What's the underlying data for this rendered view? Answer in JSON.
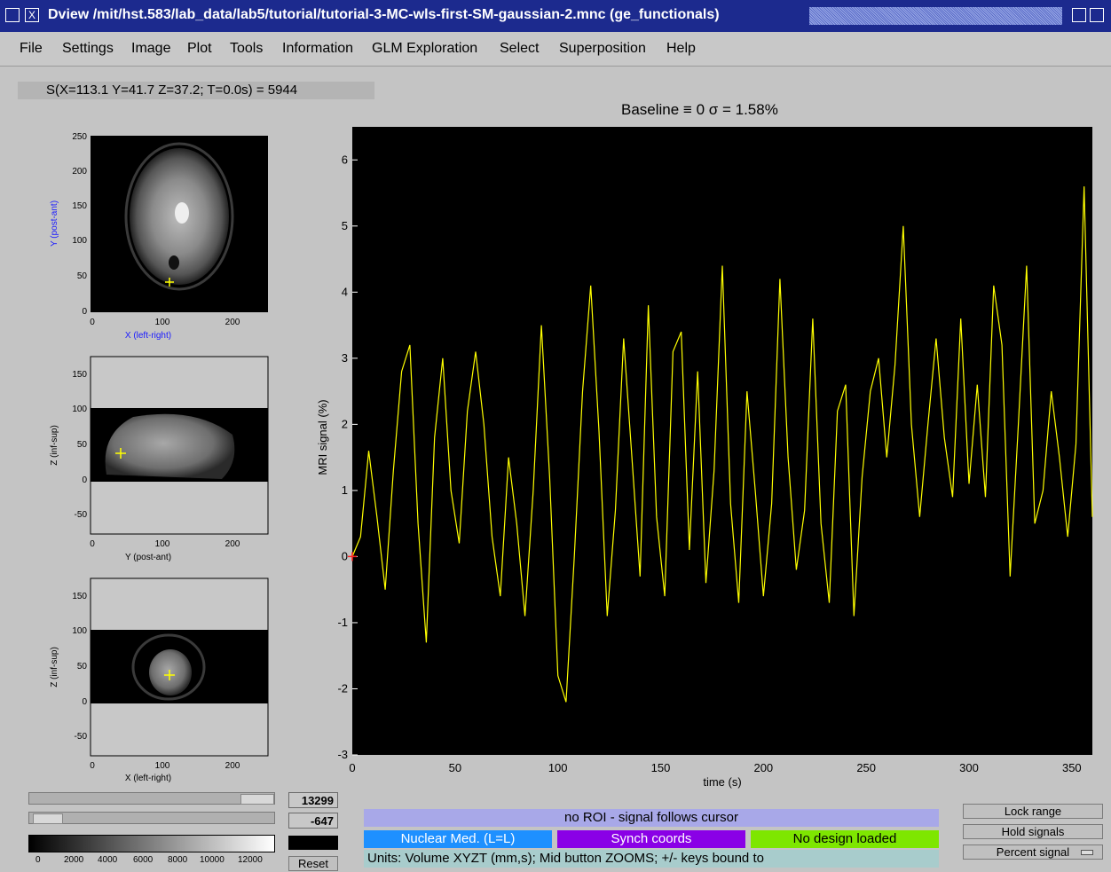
{
  "window": {
    "title": "Dview /mit/hst.583/lab_data/lab5/tutorial/tutorial-3-MC-wls-first-SM-gaussian-2.mnc      (ge_functionals)"
  },
  "menu": [
    "File",
    "Settings",
    "Image",
    "Plot",
    "Tools",
    "Information",
    "GLM Exploration",
    "Select",
    "Superposition",
    "Help"
  ],
  "status": {
    "cursor_readout": "S(X=113.1  Y=41.7  Z=37.2;  T=0.0s) = 5944"
  },
  "plot": {
    "title": "Baseline ≡ 0      σ = 1.58%"
  },
  "chart_data": {
    "type": "line",
    "xlabel": "time (s)",
    "ylabel": "MRI signal (%)",
    "xlim": [
      0,
      360
    ],
    "ylim": [
      -3,
      6.5
    ],
    "xticks": [
      0,
      50,
      100,
      150,
      200,
      250,
      300,
      350
    ],
    "yticks": [
      -3,
      -2,
      -1,
      0,
      1,
      2,
      3,
      4,
      5,
      6
    ],
    "series": [
      {
        "color": "#ffff00",
        "x": [
          0,
          4,
          8,
          12,
          16,
          20,
          24,
          28,
          32,
          36,
          40,
          44,
          48,
          52,
          56,
          60,
          64,
          68,
          72,
          76,
          80,
          84,
          88,
          92,
          96,
          100,
          104,
          108,
          112,
          116,
          120,
          124,
          128,
          132,
          136,
          140,
          144,
          148,
          152,
          156,
          160,
          164,
          168,
          172,
          176,
          180,
          184,
          188,
          192,
          196,
          200,
          204,
          208,
          212,
          216,
          220,
          224,
          228,
          232,
          236,
          240,
          244,
          248,
          252,
          256,
          260,
          264,
          268,
          272,
          276,
          280,
          284,
          288,
          292,
          296,
          300,
          304,
          308,
          312,
          316,
          320,
          324,
          328,
          332,
          336,
          340,
          344,
          348,
          352,
          356,
          360
        ],
        "y": [
          0,
          0.3,
          1.6,
          0.6,
          -0.5,
          1.3,
          2.8,
          3.2,
          0.5,
          -1.3,
          1.8,
          3.0,
          1.0,
          0.2,
          2.2,
          3.1,
          2.0,
          0.3,
          -0.6,
          1.5,
          0.5,
          -0.9,
          1.0,
          3.5,
          1.2,
          -1.8,
          -2.2,
          0.0,
          2.5,
          4.1,
          1.9,
          -0.9,
          0.7,
          3.3,
          1.5,
          -0.3,
          3.8,
          0.6,
          -0.6,
          3.1,
          3.4,
          0.1,
          2.8,
          -0.4,
          1.3,
          4.4,
          0.8,
          -0.7,
          2.5,
          1.0,
          -0.6,
          0.8,
          4.2,
          1.5,
          -0.2,
          0.7,
          3.6,
          0.5,
          -0.7,
          2.2,
          2.6,
          -0.9,
          1.2,
          2.5,
          3.0,
          1.5,
          2.9,
          5.0,
          2.0,
          0.6,
          2.0,
          3.3,
          1.8,
          0.9,
          3.6,
          1.1,
          2.6,
          0.9,
          4.1,
          3.2,
          -0.3,
          2.0,
          4.4,
          0.5,
          1.0,
          2.5,
          1.5,
          0.3,
          1.7,
          5.6,
          0.6
        ]
      }
    ]
  },
  "views": [
    {
      "xlabel": "X (left-right)",
      "ylabel": "Y (post-ant)",
      "yticks": [
        "250",
        "200",
        "150",
        "100",
        "50",
        "0"
      ],
      "xticks": [
        "0",
        "100",
        "200"
      ]
    },
    {
      "xlabel": "Y (post-ant)",
      "ylabel": "Z (inf-sup)",
      "yticks": [
        "150",
        "100",
        "50",
        "0",
        "-50"
      ],
      "xticks": [
        "0",
        "100",
        "200"
      ]
    },
    {
      "xlabel": "X (left-right)",
      "ylabel": "Z (inf-sup)",
      "yticks": [
        "150",
        "100",
        "50",
        "0",
        "-50"
      ],
      "xticks": [
        "0",
        "100",
        "200"
      ]
    }
  ],
  "controls": {
    "max_value": "13299",
    "min_value": "-647",
    "reset_label": "Reset",
    "colorbar_ticks": [
      "0",
      "2000",
      "4000",
      "6000",
      "8000",
      "10000",
      "12000"
    ],
    "roi_status": "no ROI - signal follows cursor",
    "orientation": "Nuclear Med. (L=L)",
    "synch": "Synch coords",
    "design": "No design loaded",
    "units_text": "Units:  Volume XYZT (mm,s);     Mid button ZOOMS;          +/- keys bound to",
    "lock_range": "Lock range",
    "hold_signals": "Hold signals",
    "percent_signal": "Percent signal"
  },
  "colors": {
    "title_bg": "#1c2a8e",
    "orientation_bg": "#1e90ff",
    "synch_bg": "#8a00e6",
    "design_bg": "#7ee600",
    "roi_bg": "#a8a8e8",
    "units_bg": "#a8cccc",
    "trace": "#ffff00"
  }
}
